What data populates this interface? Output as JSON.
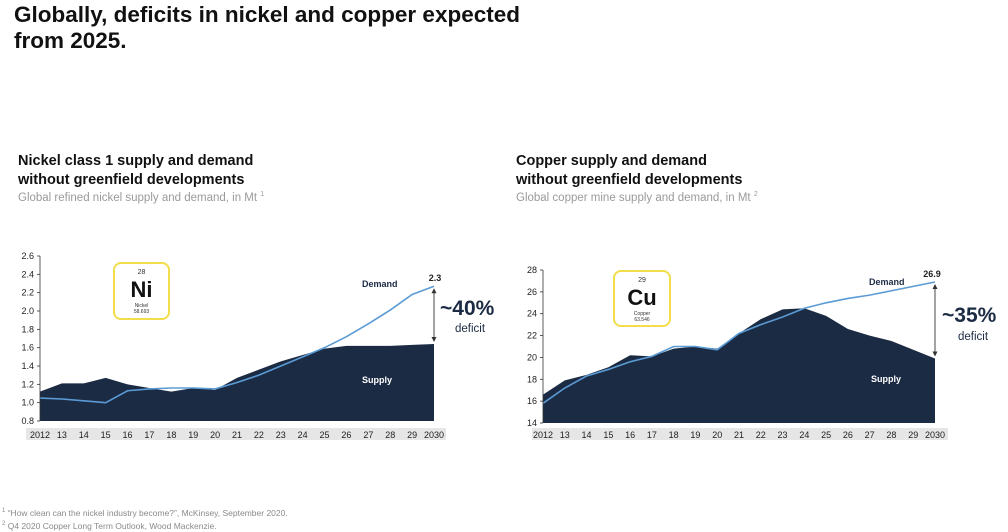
{
  "title": "Globally, deficits in nickel and copper expected from 2025.",
  "panels": [
    {
      "title_line1": "Nickel class 1 supply and demand",
      "title_line2": "without greenfield developments",
      "subtitle": "Global refined nickel supply and demand, in Mt",
      "subtitle_ref": "1",
      "element": {
        "number": "28",
        "symbol": "Ni",
        "name": "Nickel",
        "mass": "58.693"
      },
      "deficit_pct": "~40%",
      "deficit_word": "deficit",
      "end_label": "2.3"
    },
    {
      "title_line1": "Copper supply and demand",
      "title_line2": "without greenfield developments",
      "subtitle": "Global copper mine supply and demand, in Mt",
      "subtitle_ref": "2",
      "element": {
        "number": "29",
        "symbol": "Cu",
        "name": "Copper",
        "mass": "63.546"
      },
      "deficit_pct": "~35%",
      "deficit_word": "deficit",
      "end_label": "26.9"
    }
  ],
  "footnotes": [
    {
      "ref": "1",
      "text": "“How clean can the nickel industry become?”, McKinsey, September 2020."
    },
    {
      "ref": "2",
      "text": "Q4 2020 Copper Long Term Outlook, Wood Mackenzie."
    }
  ],
  "colors": {
    "supply": "#1c2b44",
    "demand": "#5b9bd5",
    "accent": "#f2dd4a",
    "axis_band": "#e6e6e6"
  },
  "chart_data": [
    {
      "type": "area",
      "x": [
        "2012",
        "13",
        "14",
        "15",
        "16",
        "17",
        "18",
        "19",
        "20",
        "21",
        "22",
        "23",
        "24",
        "25",
        "26",
        "27",
        "28",
        "29",
        "2030"
      ],
      "ylim": [
        0.8,
        2.6
      ],
      "yticks": [
        "0.8",
        "1.0",
        "1.2",
        "1.4",
        "1.6",
        "1.8",
        "2.0",
        "2.2",
        "2.4",
        "2.6"
      ],
      "series": [
        {
          "name": "Supply",
          "kind": "area",
          "values": [
            1.12,
            1.21,
            1.21,
            1.27,
            1.2,
            1.16,
            1.12,
            1.16,
            1.14,
            1.27,
            1.36,
            1.45,
            1.52,
            1.59,
            1.62,
            1.62,
            1.62,
            1.63,
            1.64
          ]
        },
        {
          "name": "Demand",
          "kind": "line",
          "values": [
            1.05,
            1.04,
            1.02,
            1.0,
            1.13,
            1.15,
            1.16,
            1.16,
            1.15,
            1.22,
            1.3,
            1.4,
            1.5,
            1.6,
            1.72,
            1.86,
            2.01,
            2.18,
            2.27
          ]
        }
      ]
    },
    {
      "type": "area",
      "x": [
        "2012",
        "13",
        "14",
        "15",
        "16",
        "17",
        "18",
        "19",
        "20",
        "21",
        "22",
        "23",
        "24",
        "25",
        "26",
        "27",
        "28",
        "29",
        "2030"
      ],
      "ylim": [
        14,
        28
      ],
      "yticks": [
        "14",
        "16",
        "18",
        "20",
        "22",
        "24",
        "26",
        "28"
      ],
      "series": [
        {
          "name": "Supply",
          "kind": "area",
          "values": [
            16.6,
            17.9,
            18.4,
            19.1,
            20.2,
            20.1,
            20.8,
            21.0,
            20.8,
            22.2,
            23.5,
            24.4,
            24.5,
            23.8,
            22.6,
            22.0,
            21.5,
            20.7,
            19.9
          ]
        },
        {
          "name": "Demand",
          "kind": "line",
          "values": [
            15.8,
            17.2,
            18.3,
            18.9,
            19.6,
            20.1,
            21.0,
            21.0,
            20.7,
            22.2,
            23.0,
            23.7,
            24.5,
            25.0,
            25.4,
            25.7,
            26.1,
            26.5,
            26.9
          ]
        }
      ]
    }
  ]
}
